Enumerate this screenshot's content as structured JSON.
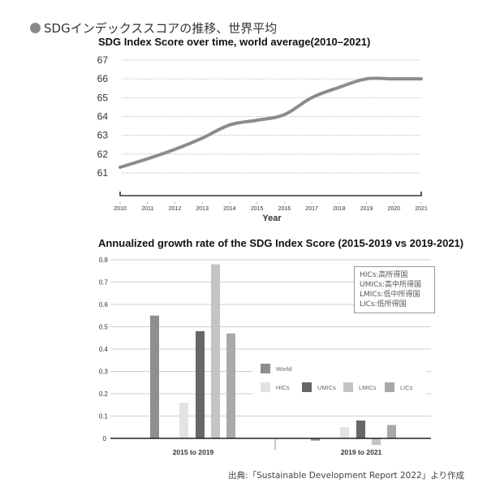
{
  "heading": {
    "icon": "bullet-dot-icon",
    "text": "SDGインデックススコアの推移、世界平均"
  },
  "chart_data": [
    {
      "type": "line",
      "title": "SDG Index Score over time, world average(2010–2021)",
      "xlabel": "Year",
      "ylabel": "",
      "x": [
        2010,
        2011,
        2012,
        2013,
        2014,
        2015,
        2016,
        2017,
        2018,
        2019,
        2020,
        2021
      ],
      "x_tick_labels": [
        "2010",
        "2011",
        "2012",
        "2013",
        "2014",
        "2015",
        "2016",
        "2017",
        "2018",
        "2019",
        "2020",
        "2021"
      ],
      "series": [
        {
          "name": "World average",
          "values": [
            61.3,
            61.75,
            62.25,
            62.85,
            63.55,
            63.8,
            64.1,
            65.0,
            65.55,
            66.0,
            66.0,
            66.0
          ],
          "color": "#8c8c8c"
        }
      ],
      "y_ticks": [
        61,
        62,
        63,
        64,
        65,
        66,
        67
      ],
      "ylim": [
        60.5,
        67
      ],
      "grid": true,
      "grid_style": "dotted"
    },
    {
      "type": "bar",
      "title": "Annualized growth rate of the SDG Index Score (2015-2019 vs 2019-2021)",
      "xlabel": "",
      "ylabel": "",
      "categories": [
        "2015 to 2019",
        "2019 to 2021"
      ],
      "series": [
        {
          "name": "World",
          "values": [
            0.55,
            -0.01
          ],
          "color": "#8f8f8f"
        },
        {
          "name": "HICs",
          "values": [
            0.16,
            0.05
          ],
          "color": "#e3e3e3"
        },
        {
          "name": "UMICs",
          "values": [
            0.48,
            0.08
          ],
          "color": "#676767"
        },
        {
          "name": "LMICs",
          "values": [
            0.78,
            -0.03
          ],
          "color": "#c4c4c4"
        },
        {
          "name": "LICs",
          "values": [
            0.47,
            0.06
          ],
          "color": "#a9a9a9"
        }
      ],
      "y_ticks": [
        "0",
        "0.1",
        "0.2",
        "0.3",
        "0.4",
        "0.5",
        "0.6",
        "0.7",
        "0.8"
      ],
      "ylim": [
        -0.05,
        0.8
      ],
      "grid": true,
      "legend_position": "right-middle",
      "note_lines": [
        "HICs:高所得国",
        "UMICs:高中所得国",
        "LMICs:低中所得国",
        "LICs:低所得国"
      ]
    }
  ],
  "source": "出典:「Sustainable Development Report 2022」より作成"
}
